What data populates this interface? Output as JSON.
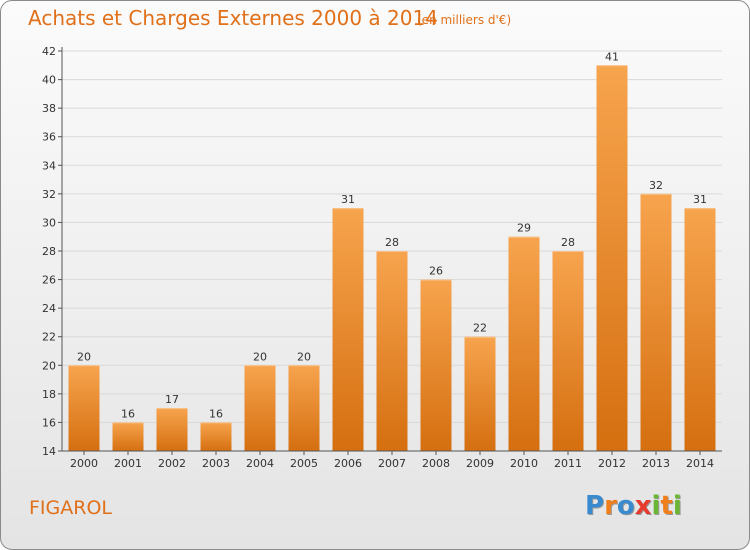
{
  "header": {
    "title": "Achats et Charges Externes 2000 à 2014",
    "subtitle": "(en milliers d'€)"
  },
  "footer": {
    "commune": "FIGAROL",
    "logo": "Proxiti",
    "logo_colors": [
      "#3a8ad0",
      "#f07f1b",
      "#3a8ad0",
      "#e63b2e",
      "#6bb632",
      "#f07f1b",
      "#6bb632"
    ]
  },
  "colors": {
    "bar_top": "#f7a44e",
    "bar_bottom": "#d56f10",
    "text_accent": "#e07019",
    "grid": "#d9d9d9"
  },
  "chart_data": {
    "type": "bar",
    "title": "Achats et Charges Externes 2000 à 2014",
    "subtitle": "(en milliers d'€)",
    "categories": [
      "2000",
      "2001",
      "2002",
      "2003",
      "2004",
      "2005",
      "2006",
      "2007",
      "2008",
      "2009",
      "2010",
      "2011",
      "2012",
      "2013",
      "2014"
    ],
    "values": [
      20,
      16,
      17,
      16,
      20,
      20,
      31,
      28,
      26,
      22,
      29,
      28,
      41,
      32,
      31
    ],
    "data_labels": [
      "20",
      "16",
      "17",
      "16",
      "20",
      "20",
      "31",
      "28",
      "26",
      "22",
      "29",
      "28",
      "41",
      "32",
      "31"
    ],
    "y_ticks": [
      "14",
      "16",
      "18",
      "20",
      "22",
      "24",
      "26",
      "28",
      "30",
      "32",
      "34",
      "36",
      "38",
      "40",
      "42"
    ],
    "ylim": [
      14,
      42
    ],
    "grid": true,
    "legend": "none"
  }
}
